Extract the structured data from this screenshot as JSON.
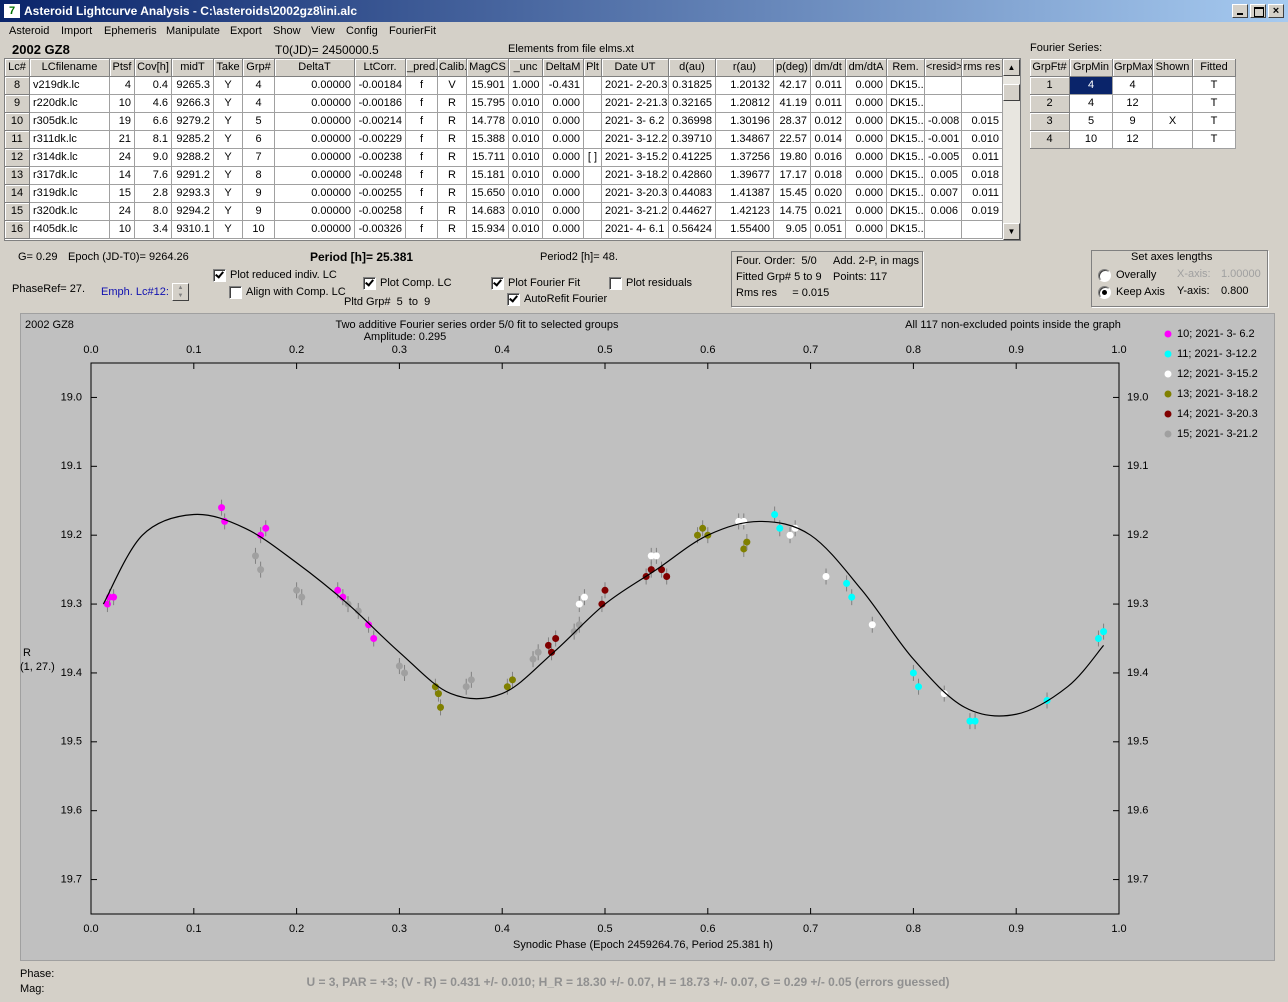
{
  "window": {
    "title": "Asteroid Lightcurve Analysis - C:\\asteroids\\2002gz8\\ini.alc"
  },
  "menu": [
    "Asteroid",
    "Import",
    "Ephemeris",
    "Manipulate",
    "Export",
    "Show",
    "View",
    "Config",
    "FourierFit"
  ],
  "header": {
    "object": "2002 GZ8",
    "t0": "T0(JD)= 2450000.5",
    "elements": "Elements from file elms.xt",
    "fourier_title": "Fourier Series:"
  },
  "table": {
    "columns": [
      "Lc#",
      "LCfilename",
      "Ptsf",
      "Cov[h]",
      "midT",
      "Take",
      "Grp#",
      "DeltaT",
      "LtCorr.",
      "_pred.",
      "Calib.",
      "MagCS",
      "_unc",
      "DeltaM",
      "Plt",
      "Date UT",
      "d(au)",
      "r(au)",
      "p(deg)",
      "dm/dt",
      "dm/dtA",
      "Rem.",
      "<resid>",
      "rms res"
    ],
    "rows": [
      [
        "8",
        "v219dk.lc",
        "4",
        "0.4",
        "9265.3",
        "Y",
        "4",
        "0.00000",
        "-0.00184",
        "f",
        "V",
        "15.901",
        "1.000",
        "-0.431",
        null,
        "2021- 2-20.3",
        "0.31825",
        "1.20132",
        "42.17",
        "0.011",
        "0.000",
        "DK15..",
        null,
        null
      ],
      [
        "9",
        "r220dk.lc",
        "10",
        "4.6",
        "9266.3",
        "Y",
        "4",
        "0.00000",
        "-0.00186",
        "f",
        "R",
        "15.795",
        "0.010",
        "0.000",
        null,
        "2021- 2-21.3",
        "0.32165",
        "1.20812",
        "41.19",
        "0.011",
        "0.000",
        "DK15..",
        null,
        null
      ],
      [
        "10",
        "r305dk.lc",
        "19",
        "6.6",
        "9279.2",
        "Y",
        "5",
        "0.00000",
        "-0.00214",
        "f",
        "R",
        "14.778",
        "0.010",
        "0.000",
        null,
        "2021- 3- 6.2",
        "0.36998",
        "1.30196",
        "28.37",
        "0.012",
        "0.000",
        "DK15..",
        "-0.008",
        "0.015"
      ],
      [
        "11",
        "r311dk.lc",
        "21",
        "8.1",
        "9285.2",
        "Y",
        "6",
        "0.00000",
        "-0.00229",
        "f",
        "R",
        "15.388",
        "0.010",
        "0.000",
        null,
        "2021- 3-12.2",
        "0.39710",
        "1.34867",
        "22.57",
        "0.014",
        "0.000",
        "DK15..",
        "-0.001",
        "0.010"
      ],
      [
        "12",
        "r314dk.lc",
        "24",
        "9.0",
        "9288.2",
        "Y",
        "7",
        "0.00000",
        "-0.00238",
        "f",
        "R",
        "15.711",
        "0.010",
        "0.000",
        "[ ]",
        "2021- 3-15.2",
        "0.41225",
        "1.37256",
        "19.80",
        "0.016",
        "0.000",
        "DK15..",
        "-0.005",
        "0.011"
      ],
      [
        "13",
        "r317dk.lc",
        "14",
        "7.6",
        "9291.2",
        "Y",
        "8",
        "0.00000",
        "-0.00248",
        "f",
        "R",
        "15.181",
        "0.010",
        "0.000",
        null,
        "2021- 3-18.2",
        "0.42860",
        "1.39677",
        "17.17",
        "0.018",
        "0.000",
        "DK15..",
        "0.005",
        "0.018"
      ],
      [
        "14",
        "r319dk.lc",
        "15",
        "2.8",
        "9293.3",
        "Y",
        "9",
        "0.00000",
        "-0.00255",
        "f",
        "R",
        "15.650",
        "0.010",
        "0.000",
        null,
        "2021- 3-20.3",
        "0.44083",
        "1.41387",
        "15.45",
        "0.020",
        "0.000",
        "DK15..",
        "0.007",
        "0.011"
      ],
      [
        "15",
        "r320dk.lc",
        "24",
        "8.0",
        "9294.2",
        "Y",
        "9",
        "0.00000",
        "-0.00258",
        "f",
        "R",
        "14.683",
        "0.010",
        "0.000",
        null,
        "2021- 3-21.2",
        "0.44627",
        "1.42123",
        "14.75",
        "0.021",
        "0.000",
        "DK15..",
        "0.006",
        "0.019"
      ],
      [
        "16",
        "r405dk.lc",
        "10",
        "3.4",
        "9310.1",
        "Y",
        "10",
        "0.00000",
        "-0.00326",
        "f",
        "R",
        "15.934",
        "0.010",
        "0.000",
        null,
        "2021- 4- 6.1",
        "0.56424",
        "1.55400",
        "9.05",
        "0.051",
        "0.000",
        "DK15..",
        null,
        null
      ]
    ]
  },
  "fourier_table": {
    "columns": [
      "GrpFt#",
      "GrpMin",
      "GrpMax",
      "Shown",
      "Fitted"
    ],
    "rows": [
      [
        "1",
        "4",
        "4",
        null,
        "T"
      ],
      [
        "2",
        "4",
        "12",
        null,
        "T"
      ],
      [
        "3",
        "5",
        "9",
        "X",
        "T"
      ],
      [
        "4",
        "10",
        "12",
        null,
        "T"
      ]
    ]
  },
  "controls": {
    "g": "G= 0.29",
    "epoch": "Epoch (JD-T0)= 9264.26",
    "period": "Period [h]= 25.381",
    "period2": "Period2 [h]= 48.",
    "phaseref": "PhaseRef= 27.",
    "emph": "Emph. Lc#12:",
    "pltd": "Pltd Grp#  5  to  9",
    "checkboxes": [
      {
        "label": "Plot reduced indiv. LC",
        "checked": true
      },
      {
        "label": "Align with Comp. LC",
        "checked": false
      },
      {
        "label": "Plot Comp. LC",
        "checked": true
      },
      {
        "label": "Plot Fourier Fit",
        "checked": true
      },
      {
        "label": "AutoRefit Fourier",
        "checked": true
      },
      {
        "label": "Plot residuals",
        "checked": false
      }
    ],
    "info": [
      "Four. Order:  5/0",
      "Add. 2-P, in mags",
      "Fitted Grp# 5 to 9",
      "Points: 117",
      "Rms res     = 0.015"
    ],
    "axes_group": {
      "title": "Set axes lengths",
      "radios": [
        {
          "label": "Overally",
          "selected": false
        },
        {
          "label": "Keep Axis",
          "selected": true
        }
      ],
      "x_label": "X-axis:",
      "x_value": "1.00000",
      "y_label": "Y-axis:",
      "y_value": "0.800"
    }
  },
  "chart_data": {
    "type": "scatter",
    "object": "2002 GZ8",
    "title": "Two additive Fourier series order 5/0 fit to selected groups",
    "subtitle": "Amplitude: 0.295",
    "note": "All 117 non-excluded points inside the graph",
    "y_label": [
      "R",
      "(1, 27.)"
    ],
    "x_label": "Synodic Phase (Epoch 2459264.76, Period 25.381 h)",
    "xlim": [
      0,
      1
    ],
    "ylim": [
      18.95,
      19.75
    ],
    "y_inverted": true,
    "xticks": [
      {
        "value": 0,
        "label": "0.0"
      },
      0.1,
      0.2,
      0.3,
      0.4,
      0.5,
      0.6,
      0.7,
      0.8,
      0.9,
      {
        "value": 1,
        "label": "1.0"
      }
    ],
    "yticks": [
      {
        "value": 19,
        "label": "19.0"
      },
      19.1,
      19.2,
      19.3,
      19.4,
      19.5,
      19.6,
      19.7
    ],
    "series": [
      {
        "name": "10; 2021- 3- 6.2",
        "color": "#ff00ff",
        "x": [
          0.016,
          0.018,
          0.022,
          0.127,
          0.13,
          0.165,
          0.17,
          0.24,
          0.245,
          0.27,
          0.275
        ],
        "values": [
          19.3,
          19.29,
          19.29,
          19.16,
          19.18,
          19.2,
          19.19,
          19.28,
          19.29,
          19.33,
          19.35
        ]
      },
      {
        "name": "11; 2021- 3-12.2",
        "color": "#00ffff",
        "x": [
          0.665,
          0.67,
          0.735,
          0.74,
          0.8,
          0.805,
          0.855,
          0.86,
          0.93,
          0.98,
          0.985
        ],
        "values": [
          19.17,
          19.19,
          19.27,
          19.29,
          19.4,
          19.42,
          19.47,
          19.47,
          19.44,
          19.35,
          19.34
        ]
      },
      {
        "name": "12; 2021- 3-15.2",
        "color": "#ffffff",
        "x": [
          0.475,
          0.48,
          0.545,
          0.55,
          0.63,
          0.635,
          0.68,
          0.685,
          0.715,
          0.76,
          0.83
        ],
        "values": [
          19.3,
          19.29,
          19.23,
          19.23,
          19.18,
          19.18,
          19.2,
          19.19,
          19.26,
          19.33,
          19.43
        ]
      },
      {
        "name": "13; 2021- 3-18.2",
        "color": "#808000",
        "x": [
          0.335,
          0.338,
          0.34,
          0.405,
          0.41,
          0.59,
          0.595,
          0.6,
          0.635,
          0.638
        ],
        "values": [
          19.42,
          19.43,
          19.45,
          19.42,
          19.41,
          19.2,
          19.19,
          19.2,
          19.22,
          19.21
        ]
      },
      {
        "name": "14; 2021- 3-20.3",
        "color": "#800000",
        "x": [
          0.445,
          0.448,
          0.452,
          0.497,
          0.5,
          0.54,
          0.545,
          0.555,
          0.56
        ],
        "values": [
          19.36,
          19.37,
          19.35,
          19.3,
          19.28,
          19.26,
          19.25,
          19.25,
          19.26
        ]
      },
      {
        "name": "15; 2021- 3-21.2",
        "color": "#a0a0a0",
        "x": [
          0.16,
          0.165,
          0.2,
          0.205,
          0.25,
          0.26,
          0.3,
          0.305,
          0.365,
          0.37,
          0.43,
          0.435,
          0.47,
          0.475
        ],
        "values": [
          19.23,
          19.25,
          19.28,
          19.29,
          19.3,
          19.31,
          19.39,
          19.4,
          19.42,
          19.41,
          19.38,
          19.37,
          19.34,
          19.33
        ]
      }
    ],
    "fit": {
      "color": "#000000",
      "x": [
        0.012,
        0.05,
        0.1,
        0.15,
        0.2,
        0.25,
        0.3,
        0.35,
        0.4,
        0.45,
        0.5,
        0.55,
        0.6,
        0.65,
        0.7,
        0.75,
        0.8,
        0.85,
        0.9,
        0.95,
        0.985
      ],
      "values": [
        19.3,
        19.2,
        19.17,
        19.19,
        19.24,
        19.3,
        19.37,
        19.43,
        19.43,
        19.37,
        19.3,
        19.25,
        19.2,
        19.18,
        19.2,
        19.28,
        19.38,
        19.45,
        19.46,
        19.42,
        19.36
      ]
    }
  },
  "status": {
    "phase": "Phase:",
    "mag": "Mag:",
    "summary": "U = 3, PAR = +3; (V - R) = 0.431 +/- 0.010; H_R = 18.30 +/- 0.07, H = 18.73 +/- 0.07, G = 0.29 +/- 0.05 (errors guessed)"
  }
}
